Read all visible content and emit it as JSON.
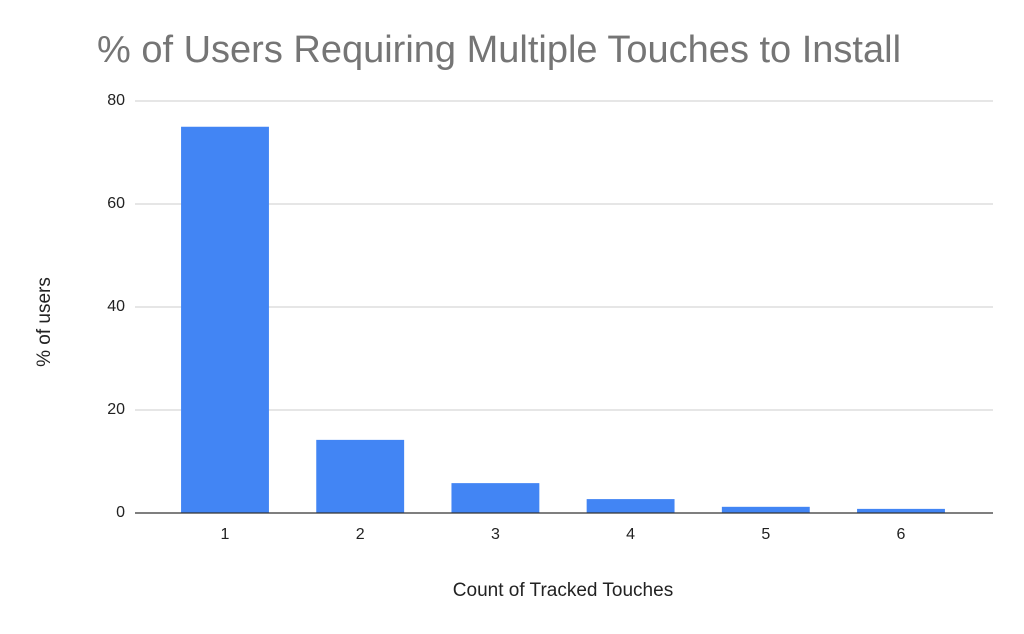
{
  "chart_data": {
    "type": "bar",
    "title": "% of Users Requiring Multiple Touches to Install",
    "x_label": "Count of Tracked Touches",
    "y_label": "% of users",
    "categories": [
      "1",
      "2",
      "3",
      "4",
      "5",
      "6"
    ],
    "values": [
      75,
      14.2,
      5.8,
      2.7,
      1.2,
      0.8
    ],
    "color": "#4285f4",
    "ylim": [
      0,
      80
    ],
    "yticks": [
      0,
      20,
      40,
      60,
      80
    ],
    "grid": true
  }
}
